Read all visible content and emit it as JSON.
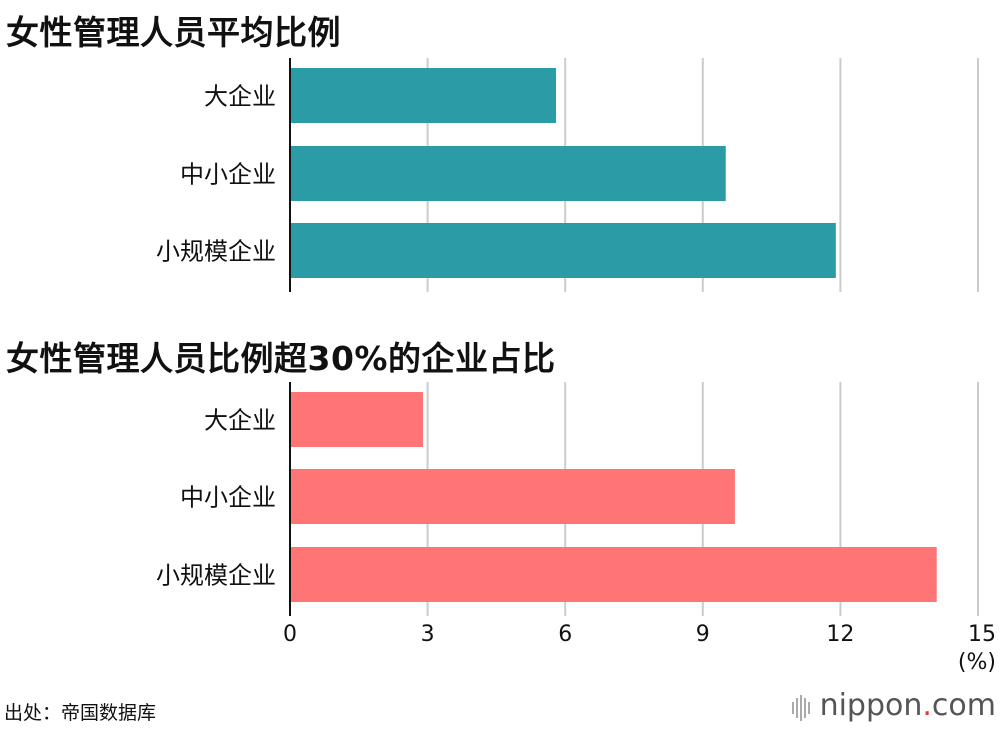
{
  "chart_data": [
    {
      "type": "bar",
      "orientation": "horizontal",
      "title": "女性管理人员平均比例",
      "categories": [
        "大企业",
        "中小企业",
        "小规模企业"
      ],
      "values": [
        5.8,
        9.5,
        11.9
      ],
      "color": "#2b9ba6",
      "xlim": [
        0,
        15
      ],
      "grid": true
    },
    {
      "type": "bar",
      "orientation": "horizontal",
      "title": "女性管理人员比例超30%的企业占比",
      "categories": [
        "大企业",
        "中小企业",
        "小规模企业"
      ],
      "values": [
        2.9,
        9.7,
        14.1
      ],
      "color": "#ff7575",
      "xlim": [
        0,
        15
      ],
      "xticks": [
        "0",
        "3",
        "6",
        "9",
        "12",
        "15"
      ],
      "xunit": "(%)",
      "grid": true
    }
  ],
  "footer": {
    "source": "出处：帝国数据库",
    "brand_name": "nippon",
    "brand_dot": ".",
    "brand_tld": "com"
  }
}
